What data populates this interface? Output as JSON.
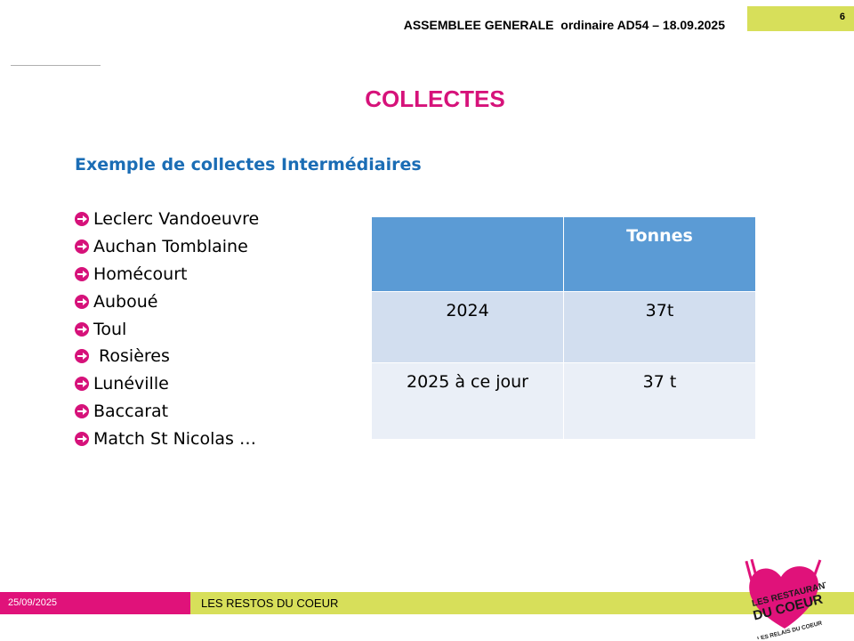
{
  "header": {
    "meeting": "ASSEMBLEE GENERALE  ordinaire AD54 – 18.09.2025",
    "page_number": "6"
  },
  "slide": {
    "title": "COLLECTES",
    "subtitle": "Exemple de collectes Intermédiaires",
    "locations": [
      "Leclerc Vandoeuvre",
      "Auchan Tomblaine",
      "Homécourt",
      "Auboué",
      "Toul",
      " Rosières",
      "Lunéville",
      "Baccarat",
      "Match St Nicolas …"
    ]
  },
  "table": {
    "header": [
      "",
      "Tonnes"
    ],
    "rows": [
      [
        "2024",
        "37t"
      ],
      [
        "2025 à ce jour",
        "37 t"
      ]
    ]
  },
  "footer": {
    "date": "25/09/2025",
    "org": "LES RESTOS DU COEUR"
  },
  "logo": {
    "line1": "LES RESTAURANTS",
    "line2": "DU COEUR",
    "line3": "LES RELAIS DU COEUR"
  },
  "colors": {
    "accent_pink": "#d6127a",
    "accent_green": "#d7df5a",
    "subtitle_blue": "#1b6db5",
    "table_header": "#5b9bd5",
    "table_row1": "#d2deef",
    "table_row2": "#eaeff7"
  },
  "icons": {
    "bullet": "arrow-circle-right-icon"
  }
}
